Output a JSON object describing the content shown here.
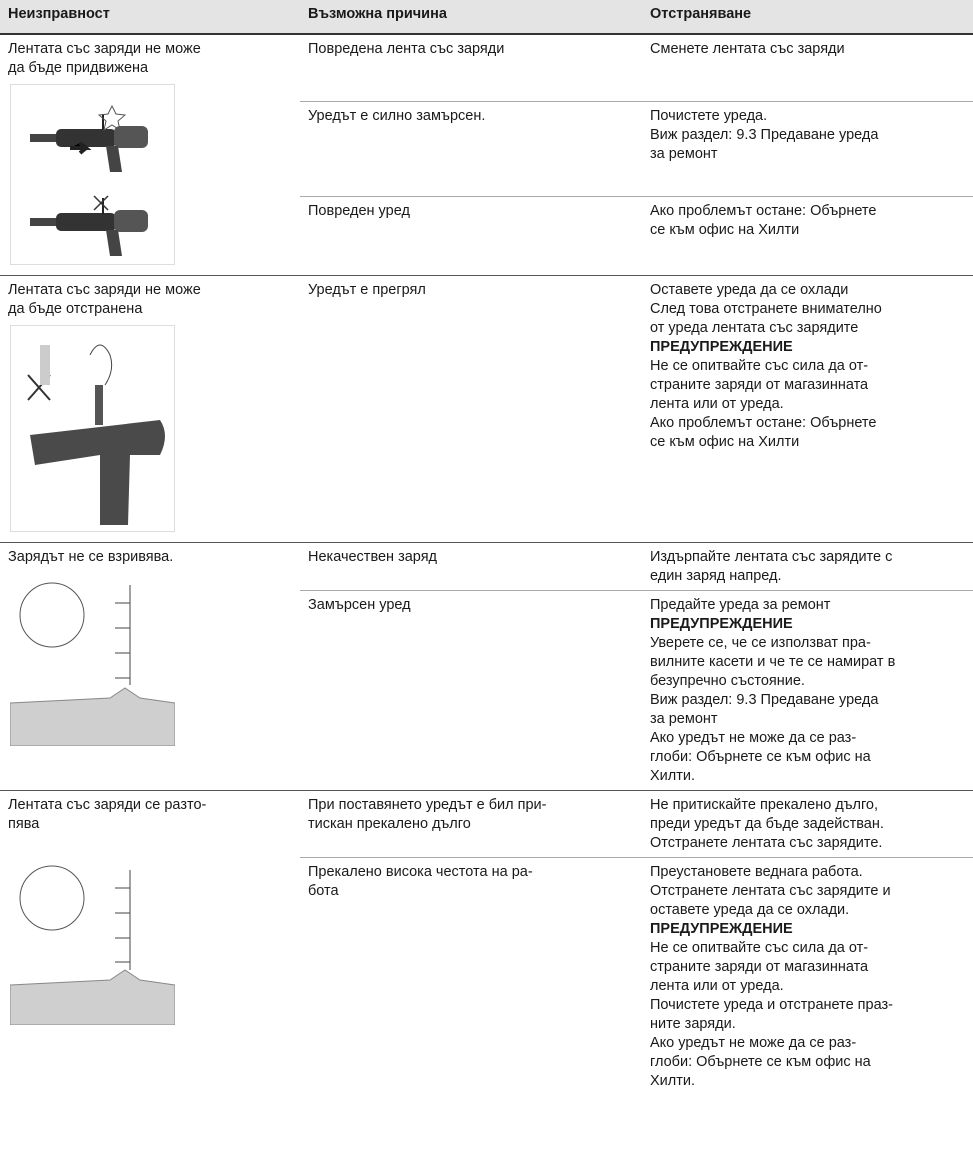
{
  "table": {
    "header": [
      "Неизправност",
      "Възможна причина",
      "Отстраняване"
    ],
    "groups": [
      {
        "fault": [
          "Лентата със заряди не може",
          "да бъде придвижена"
        ],
        "rows": [
          {
            "cause": [
              "Повредена лента със заряди"
            ],
            "remedy": [
              "Сменете лентата със заряди"
            ]
          },
          {
            "cause": [
              "Уредът е силно замърсен."
            ],
            "remedy": [
              "Почистете уреда.",
              "Виж раздел: 9.3 Предаване уреда",
              "за ремонт"
            ]
          },
          {
            "cause": [
              "Повреден уред"
            ],
            "remedy": [
              "Ако проблемът остане: Обърнете",
              "се към офис на Хилти"
            ]
          }
        ]
      },
      {
        "fault": [
          "Лентата със заряди не може",
          "да бъде отстранена"
        ],
        "rows": [
          {
            "cause": [
              "Уредът е прегрял"
            ],
            "remedy": [
              "Оставете уреда да се охлади",
              "След това отстранете внимателно",
              "от уреда лентата със зарядите",
              {
                "text": "ПРЕДУПРЕЖДЕНИЕ",
                "bold": true
              },
              "Не се опитвайте със сила да от-",
              "страните заряди от магазинната",
              "лента или от уреда.",
              "Ако проблемът остане: Обърнете",
              "се към офис на Хилти"
            ]
          }
        ]
      },
      {
        "fault": [
          "Зарядът не се взривява."
        ],
        "rows": [
          {
            "cause": [
              "Некачествен заряд"
            ],
            "remedy": [
              "Издърпайте лентата със зарядите с",
              "един заряд напред."
            ]
          },
          {
            "cause": [
              "Замърсен уред"
            ],
            "remedy": [
              "Предайте уреда за ремонт",
              {
                "text": "ПРЕДУПРЕЖДЕНИЕ",
                "bold": true
              },
              "Уверете се, че се използват пра-",
              "вилните касети и че те се намират в",
              "безупречно състояние.",
              "Виж раздел: 9.3 Предаване уреда",
              "за ремонт",
              "Ако уредът не може да се раз-",
              "глоби: Обърнете се към офис на",
              "Хилти."
            ]
          }
        ]
      },
      {
        "fault": [
          "Лентата със заряди се разто-",
          "пява"
        ],
        "rows": [
          {
            "cause": [
              "При поставянето уредът е бил при-",
              "тискан прекалено дълго"
            ],
            "remedy": [
              "Не притискайте прекалено дълго,",
              "преди уредът да бъде задействан.",
              "Отстранете лентата със зарядите."
            ]
          },
          {
            "cause": [
              "Прекалено висока честота на ра-",
              "бота"
            ],
            "remedy": [
              "Преустановете веднага работа.",
              "Отстранете лентата със зарядите и",
              "оставете уреда да се охлади.",
              {
                "text": "ПРЕДУПРЕЖДЕНИЕ",
                "bold": true
              },
              "Не се опитвайте със сила да от-",
              "страните заряди от магазинната",
              "лента или от уреда.",
              "Почистете уреда и отстранете праз-",
              "ните заряди.",
              "Ако уредът не може да се раз-",
              "глоби: Обърнете се към офис на",
              "Хилти."
            ]
          }
        ]
      }
    ]
  }
}
